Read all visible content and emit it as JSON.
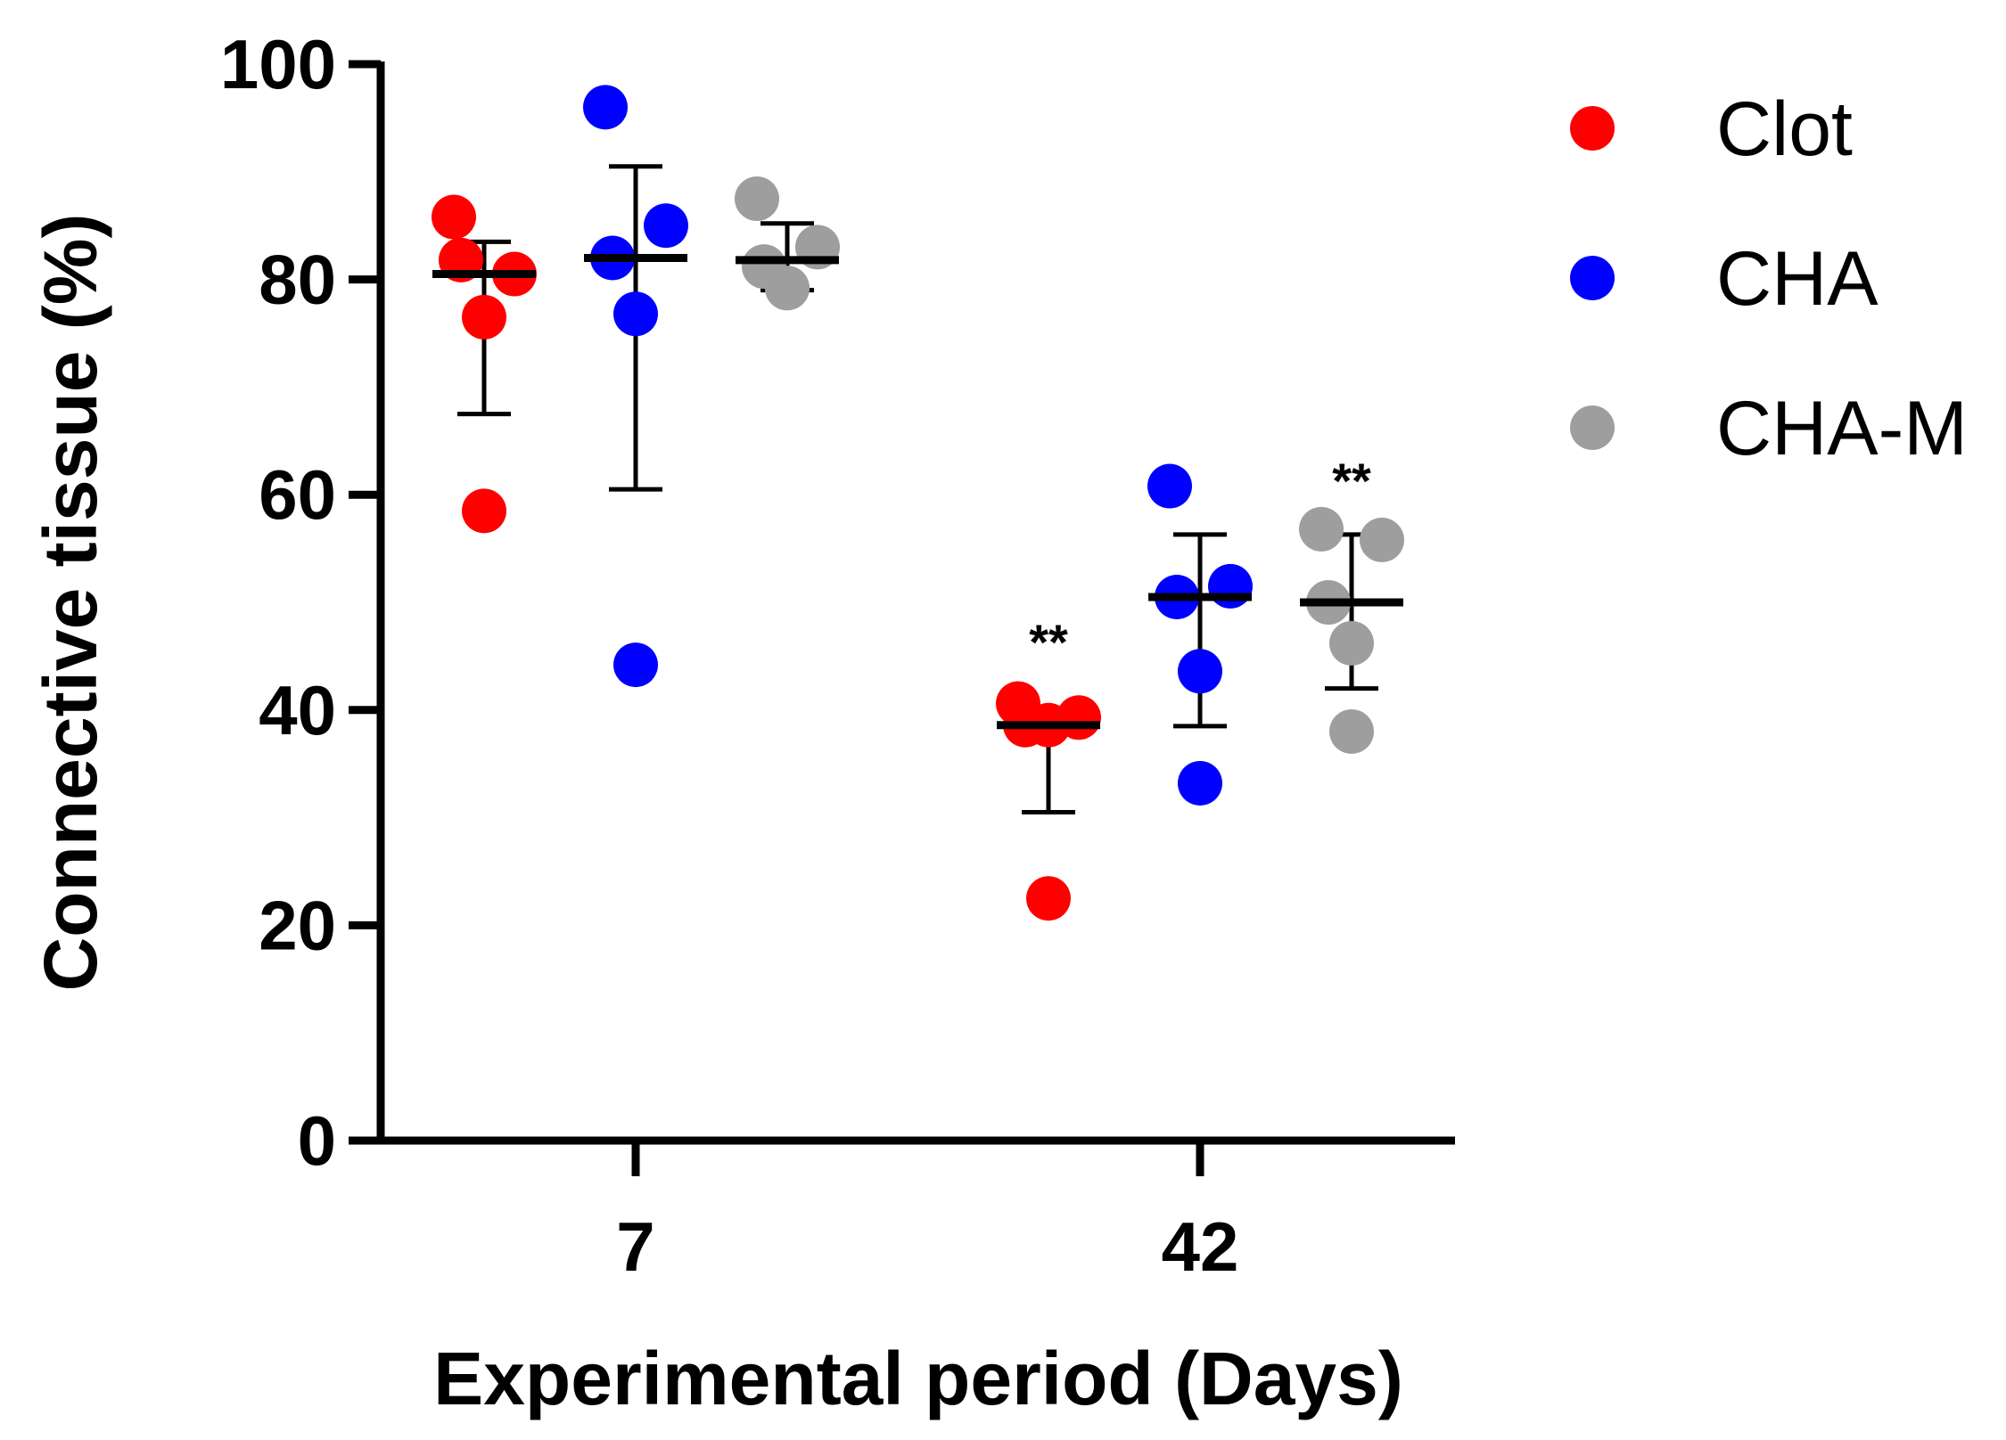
{
  "chart_data": {
    "type": "scatter",
    "title": "",
    "xlabel": "Experimental period (Days)",
    "ylabel": "Connective tissue (%)",
    "ylim": [
      0,
      100
    ],
    "yticks": [
      0,
      20,
      40,
      60,
      80,
      100
    ],
    "categories": [
      "7",
      "42"
    ],
    "grid": false,
    "legend_position": "top-right",
    "series": [
      {
        "name": "Clot",
        "color": "#ff0000",
        "groups": [
          {
            "category": "7",
            "points": [
              85.8,
              80.5,
              81.8,
              76.5,
              58.5
            ],
            "mean": 80.5,
            "err_low": 67.5,
            "err_high": 83.5
          },
          {
            "category": "42",
            "points": [
              40.6,
              39.3,
              38.6,
              38.6,
              22.5
            ],
            "mean": 38.6,
            "err_low": 30.5,
            "err_high": 38.6
          }
        ]
      },
      {
        "name": "CHA",
        "color": "#0000ff",
        "groups": [
          {
            "category": "7",
            "points": [
              96.0,
              85.0,
              82.0,
              76.8,
              44.2
            ],
            "mean": 82.0,
            "err_low": 60.5,
            "err_high": 90.5
          },
          {
            "category": "42",
            "points": [
              60.8,
              51.5,
              50.5,
              43.6,
              33.2
            ],
            "mean": 50.5,
            "err_low": 38.5,
            "err_high": 56.3
          }
        ]
      },
      {
        "name": "CHA-M",
        "color": "#9e9e9e",
        "groups": [
          {
            "category": "7",
            "points": [
              87.5,
              83.0,
              81.2,
              79.2,
              79.2
            ],
            "mean": 81.8,
            "err_low": 79.0,
            "err_high": 85.2
          },
          {
            "category": "42",
            "points": [
              56.8,
              55.8,
              50.0,
              46.2,
              38.0
            ],
            "mean": 50.0,
            "err_low": 42.0,
            "err_high": 56.3
          }
        ]
      }
    ],
    "annotations": [
      {
        "text": "**",
        "series": "Clot",
        "category": "42",
        "y": 47
      },
      {
        "text": "**",
        "series": "CHA-M",
        "category": "42",
        "y": 62
      }
    ]
  }
}
